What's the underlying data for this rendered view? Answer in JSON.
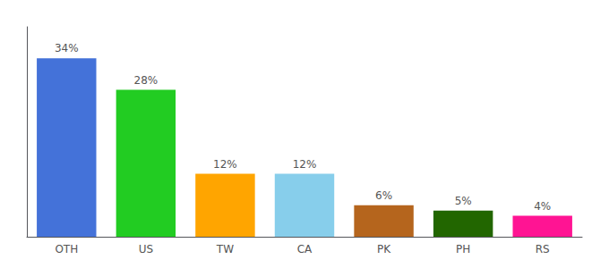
{
  "chart_data": {
    "type": "bar",
    "categories": [
      "OTH",
      "US",
      "TW",
      "CA",
      "PK",
      "PH",
      "RS"
    ],
    "values": [
      34,
      28,
      12,
      12,
      6,
      5,
      4
    ],
    "value_labels": [
      "34%",
      "28%",
      "12%",
      "12%",
      "6%",
      "5%",
      "4%"
    ],
    "colors": [
      "#4472d9",
      "#22cc22",
      "#ffa500",
      "#87ceeb",
      "#b5651d",
      "#226600",
      "#ff1493"
    ],
    "ylim": [
      0,
      40
    ],
    "grid": false,
    "data_labels": true,
    "tick_labels": "x"
  }
}
